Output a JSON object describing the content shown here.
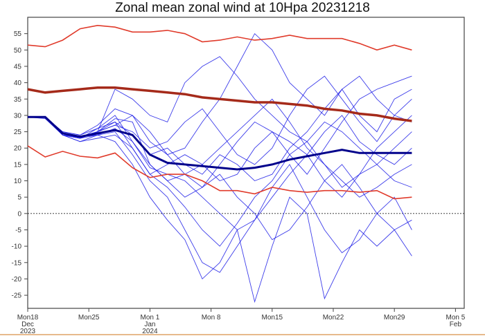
{
  "chart_data": {
    "type": "line",
    "title": "Zonal mean zonal wind at 10Hpa 20231218",
    "xlabel": "",
    "ylabel": "",
    "ylim": [
      -29,
      60
    ],
    "xlim": [
      "2023-12-18",
      "2024-02-06"
    ],
    "grid": false,
    "zero_line": "dotted",
    "yticks": [
      -25,
      -20,
      -15,
      -10,
      -5,
      0,
      5,
      10,
      15,
      20,
      25,
      30,
      35,
      40,
      45,
      50,
      55
    ],
    "xticks": [
      {
        "date": "2023-12-18",
        "lines": [
          "Mon18",
          "Dec",
          "2023"
        ]
      },
      {
        "date": "2023-12-25",
        "lines": [
          "Mon25"
        ]
      },
      {
        "date": "2024-01-01",
        "lines": [
          "Mon 1",
          "Jan",
          "2024"
        ]
      },
      {
        "date": "2024-01-08",
        "lines": [
          "Mon 8"
        ]
      },
      {
        "date": "2024-01-15",
        "lines": [
          "Mon15"
        ]
      },
      {
        "date": "2024-01-22",
        "lines": [
          "Mon22"
        ]
      },
      {
        "date": "2024-01-29",
        "lines": [
          "Mon29"
        ]
      },
      {
        "date": "2024-02-05",
        "lines": [
          "Mon 5",
          "Feb"
        ]
      }
    ],
    "x": [
      "2023-12-18",
      "2023-12-20",
      "2023-12-22",
      "2023-12-24",
      "2023-12-26",
      "2023-12-28",
      "2023-12-30",
      "2024-01-01",
      "2024-01-03",
      "2024-01-05",
      "2024-01-07",
      "2024-01-09",
      "2024-01-11",
      "2024-01-13",
      "2024-01-15",
      "2024-01-17",
      "2024-01-19",
      "2024-01-21",
      "2024-01-23",
      "2024-01-25",
      "2024-01-27",
      "2024-01-29",
      "2024-01-31"
    ],
    "colors": {
      "climate_max": "#e03a2a",
      "climate_min": "#e03a2a",
      "climate_mean": "#a52a1a",
      "ensemble_mean": "#00008b",
      "members": "#1a1ae6"
    },
    "reference": {
      "climate_max": [
        51.5,
        51,
        53,
        56.5,
        57.5,
        57,
        55.5,
        55.5,
        56,
        55,
        52.5,
        53,
        54,
        53,
        53.5,
        54.5,
        53.5,
        53.5,
        53.5,
        52,
        50,
        51.5,
        50
      ],
      "climate_mean": [
        38,
        37,
        37.5,
        38,
        38.5,
        38.5,
        38,
        37.5,
        37,
        36.5,
        35.5,
        35,
        34.5,
        34,
        34,
        33.5,
        33,
        32,
        31.5,
        30.5,
        30,
        29,
        28.3
      ],
      "climate_min": [
        20.7,
        17.3,
        19,
        17.5,
        17,
        18.5,
        14,
        11,
        12,
        12,
        10,
        7,
        7,
        6,
        8,
        7,
        6.5,
        7,
        7,
        6.5,
        7,
        4.5,
        5
      ],
      "ensemble_mean": [
        29.5,
        29.5,
        24.5,
        23.5,
        24.5,
        25.5,
        24,
        18,
        15.5,
        15,
        14.5,
        14,
        13.5,
        14,
        15,
        16.5,
        17.5,
        18.5,
        19.5,
        18.5,
        18.5,
        18.5,
        18.5
      ]
    },
    "members": [
      [
        29.5,
        29,
        24,
        23,
        26,
        28,
        20,
        12,
        8,
        2,
        -5,
        -10,
        -3,
        5,
        10,
        18,
        22,
        15,
        8,
        12,
        20,
        25,
        30
      ],
      [
        29.5,
        29.5,
        25,
        24,
        27,
        32,
        30,
        22,
        18,
        20,
        28,
        35,
        45,
        55,
        50,
        40,
        35,
        30,
        38,
        42,
        35,
        30,
        28
      ],
      [
        29.5,
        29.5,
        24,
        22,
        24,
        25,
        18,
        10,
        5,
        -5,
        -15,
        -18,
        -10,
        -2,
        8,
        15,
        5,
        -5,
        -12,
        -8,
        0,
        5,
        -5
      ],
      [
        29.5,
        29.5,
        24.5,
        23,
        25,
        27,
        25,
        20,
        22,
        28,
        32,
        25,
        18,
        15,
        20,
        30,
        38,
        42,
        35,
        28,
        22,
        30,
        35
      ],
      [
        29.5,
        29.5,
        24.5,
        23.5,
        24,
        22,
        15,
        5,
        -2,
        -8,
        -20,
        -15,
        -5,
        -27,
        -10,
        5,
        0,
        -26,
        -15,
        -5,
        -10,
        -5,
        -13
      ],
      [
        29.5,
        29.5,
        24,
        23,
        25,
        29,
        28,
        15,
        10,
        12,
        8,
        15,
        22,
        28,
        25,
        18,
        12,
        20,
        28,
        35,
        38,
        40,
        42
      ],
      [
        29.5,
        29.5,
        25,
        24,
        26,
        30,
        22,
        14,
        12,
        10,
        5,
        0,
        -5,
        -2,
        5,
        12,
        18,
        10,
        5,
        12,
        15,
        10,
        8
      ],
      [
        29.5,
        29.5,
        24,
        23.5,
        25,
        38,
        35,
        30,
        28,
        40,
        45,
        48,
        42,
        35,
        30,
        25,
        22,
        28,
        25,
        20,
        15,
        20,
        25
      ],
      [
        29.5,
        29.5,
        24,
        22,
        23,
        24,
        20,
        12,
        15,
        18,
        15,
        10,
        12,
        20,
        25,
        22,
        18,
        25,
        30,
        22,
        18,
        15,
        20
      ],
      [
        29.5,
        29.5,
        24.5,
        23,
        24,
        26,
        22,
        15,
        10,
        5,
        8,
        12,
        5,
        0,
        -8,
        -5,
        2,
        10,
        15,
        8,
        0,
        -5,
        -2
      ],
      [
        29.5,
        29.5,
        24,
        23,
        25,
        27,
        30,
        25,
        18,
        12,
        15,
        20,
        25,
        30,
        35,
        28,
        20,
        15,
        10,
        5,
        8,
        12,
        15
      ],
      [
        29.5,
        29.5,
        24.5,
        23.5,
        25,
        28,
        24,
        18,
        20,
        15,
        12,
        18,
        15,
        10,
        12,
        20,
        25,
        32,
        38,
        30,
        25,
        35,
        38
      ]
    ]
  }
}
